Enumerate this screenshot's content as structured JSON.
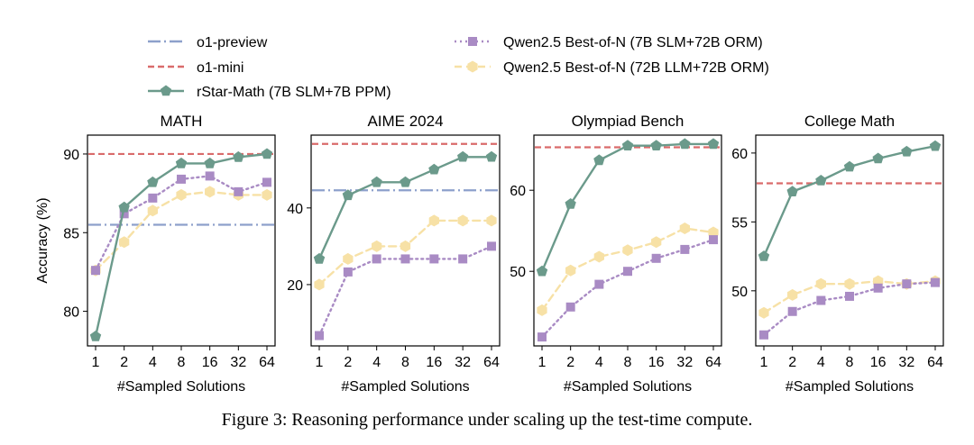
{
  "legend": {
    "entries": [
      {
        "key": "o1p",
        "label": "o1-preview"
      },
      {
        "key": "o1m",
        "label": "o1-mini"
      },
      {
        "key": "rstar",
        "label": "rStar-Math (7B SLM+7B PPM)"
      },
      {
        "key": "q7",
        "label": "Qwen2.5 Best-of-N (7B SLM+72B ORM)"
      },
      {
        "key": "q72",
        "label": "Qwen2.5 Best-of-N (72B LLM+72B ORM)"
      }
    ]
  },
  "styles": {
    "o1p": {
      "color": "#8da0cb",
      "dash": "14,4,2,4",
      "marker": "none"
    },
    "o1m": {
      "color": "#d96b6b",
      "dash": "7,4",
      "marker": "none"
    },
    "rstar": {
      "color": "#6b9a8b",
      "dash": "",
      "marker": "pentagon"
    },
    "q7": {
      "color": "#a98bc4",
      "dash": "2,4",
      "marker": "square"
    },
    "q72": {
      "color": "#f7e1a6",
      "dash": "8,5",
      "marker": "hexagon"
    }
  },
  "caption": "Figure 3: Reasoning performance under scaling up the test-time compute.",
  "chart_data": [
    {
      "type": "line",
      "title": "MATH",
      "xlabel": "#Sampled Solutions",
      "ylabel": "Accuracy (%)",
      "x_ticks": [
        "1",
        "2",
        "4",
        "8",
        "16",
        "32",
        "64"
      ],
      "y_ticks": [
        80,
        85,
        90
      ],
      "ylim": [
        77.8,
        91.2
      ],
      "hlines": [
        {
          "key": "o1p",
          "value": 85.5
        },
        {
          "key": "o1m",
          "value": 90.0
        }
      ],
      "series": [
        {
          "key": "rstar",
          "values": [
            78.4,
            86.6,
            88.2,
            89.4,
            89.4,
            89.8,
            90.0
          ]
        },
        {
          "key": "q7",
          "values": [
            82.6,
            86.2,
            87.2,
            88.4,
            88.6,
            87.6,
            88.2
          ]
        },
        {
          "key": "q72",
          "values": [
            82.6,
            84.4,
            86.4,
            87.4,
            87.6,
            87.4,
            87.4
          ]
        }
      ]
    },
    {
      "type": "line",
      "title": "AIME 2024",
      "xlabel": "#Sampled Solutions",
      "ylabel": "",
      "x_ticks": [
        "1",
        "2",
        "4",
        "8",
        "16",
        "32",
        "64"
      ],
      "y_ticks": [
        20,
        40
      ],
      "ylim": [
        4.0,
        59.0
      ],
      "hlines": [
        {
          "key": "o1p",
          "value": 44.6
        },
        {
          "key": "o1m",
          "value": 56.7
        }
      ],
      "series": [
        {
          "key": "rstar",
          "values": [
            26.7,
            43.3,
            46.7,
            46.7,
            50.0,
            53.3,
            53.3
          ]
        },
        {
          "key": "q7",
          "values": [
            6.7,
            23.3,
            26.7,
            26.7,
            26.7,
            26.7,
            30.0
          ]
        },
        {
          "key": "q72",
          "values": [
            20.0,
            26.7,
            30.0,
            30.0,
            36.7,
            36.7,
            36.7
          ]
        }
      ]
    },
    {
      "type": "line",
      "title": "Olympiad Bench",
      "xlabel": "#Sampled Solutions",
      "ylabel": "",
      "x_ticks": [
        "1",
        "2",
        "4",
        "8",
        "16",
        "32",
        "64"
      ],
      "y_ticks": [
        50,
        60
      ],
      "ylim": [
        40.8,
        66.8
      ],
      "hlines": [
        {
          "key": "o1m",
          "value": 65.3
        }
      ],
      "series": [
        {
          "key": "rstar",
          "values": [
            50.0,
            58.3,
            63.7,
            65.5,
            65.5,
            65.7,
            65.7
          ]
        },
        {
          "key": "q7",
          "values": [
            41.9,
            45.6,
            48.4,
            50.0,
            51.6,
            52.7,
            53.9
          ]
        },
        {
          "key": "q72",
          "values": [
            45.2,
            50.1,
            51.8,
            52.6,
            53.6,
            55.3,
            54.8
          ]
        }
      ]
    },
    {
      "type": "line",
      "title": "College Math",
      "xlabel": "#Sampled Solutions",
      "ylabel": "",
      "x_ticks": [
        "1",
        "2",
        "4",
        "8",
        "16",
        "32",
        "64"
      ],
      "y_ticks": [
        50,
        55,
        60
      ],
      "ylim": [
        46.0,
        61.3
      ],
      "hlines": [
        {
          "key": "o1m",
          "value": 57.8
        }
      ],
      "series": [
        {
          "key": "rstar",
          "values": [
            52.5,
            57.2,
            58.0,
            59.0,
            59.6,
            60.1,
            60.5
          ]
        },
        {
          "key": "q7",
          "values": [
            46.8,
            48.5,
            49.3,
            49.6,
            50.2,
            50.5,
            50.6
          ]
        },
        {
          "key": "q72",
          "values": [
            48.4,
            49.7,
            50.5,
            50.5,
            50.7,
            50.5,
            50.7
          ]
        }
      ]
    }
  ]
}
